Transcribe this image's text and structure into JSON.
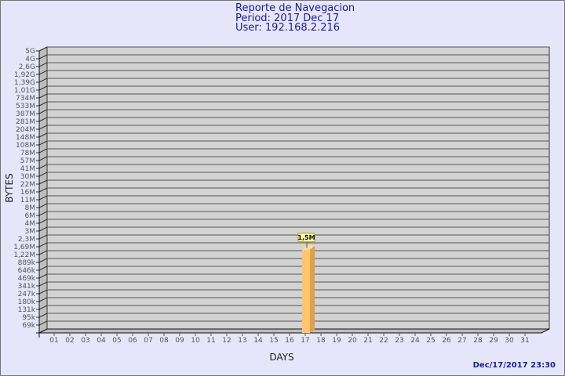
{
  "header": {
    "title": "Reporte de Navegacion",
    "period": "Period: 2017 Dec 17",
    "user": "User: 192.168.2.216"
  },
  "timestamp": "Dec/17/2017 23:30",
  "chart_data": {
    "type": "bar",
    "style": "3d",
    "xlabel": "DAYS",
    "ylabel": "BYTES",
    "y_scale": "log",
    "y_ticks": [
      "69k",
      "95k",
      "131k",
      "180k",
      "247k",
      "341k",
      "469k",
      "646k",
      "889k",
      "1,22M",
      "1,69M",
      "2,3M",
      "3M",
      "4M",
      "6M",
      "8M",
      "11M",
      "16M",
      "22M",
      "30M",
      "41M",
      "57M",
      "78M",
      "108M",
      "148M",
      "204M",
      "281M",
      "387M",
      "533M",
      "734M",
      "1,01G",
      "1,39G",
      "1,92G",
      "2,6G",
      "4G",
      "5G"
    ],
    "categories": [
      "01",
      "02",
      "03",
      "04",
      "05",
      "06",
      "07",
      "08",
      "09",
      "10",
      "11",
      "12",
      "13",
      "14",
      "15",
      "16",
      "17",
      "18",
      "19",
      "20",
      "21",
      "22",
      "23",
      "24",
      "25",
      "26",
      "27",
      "28",
      "29",
      "30",
      "31"
    ],
    "bars": [
      {
        "category": "17",
        "value": 1500000,
        "label": "1,5M"
      }
    ],
    "grid": true,
    "colors": {
      "bar": "#ffc66e",
      "bar_side": "#e0a04a",
      "bar_top": "#ffe09a",
      "plot": "#d3d3d3",
      "title": "#1a1aa6"
    }
  }
}
